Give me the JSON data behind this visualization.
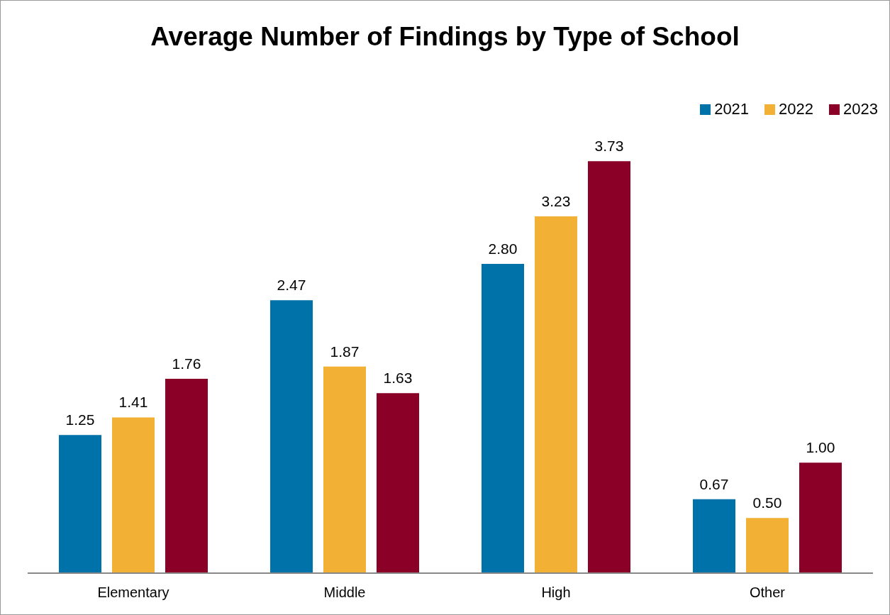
{
  "chart_data": {
    "type": "bar",
    "title": "Average Number of Findings by Type of School",
    "categories": [
      "Elementary",
      "Middle",
      "High",
      "Other"
    ],
    "legend": "top right",
    "series": [
      {
        "name": "2021",
        "color": "#0072aa",
        "values": [
          1.25,
          2.47,
          2.8,
          0.67
        ],
        "value_labels": [
          "1.25",
          "2.47",
          "2.80",
          "0.67"
        ]
      },
      {
        "name": "2022",
        "color": "#f2b035",
        "values": [
          1.41,
          1.87,
          3.23,
          0.5
        ],
        "value_labels": [
          "1.41",
          "1.87",
          "3.23",
          "0.50"
        ]
      },
      {
        "name": "2023",
        "color": "#8b0027",
        "values": [
          1.76,
          1.63,
          3.73,
          1.0
        ],
        "value_labels": [
          "1.76",
          "1.63",
          "3.73",
          "1.00"
        ]
      }
    ]
  }
}
